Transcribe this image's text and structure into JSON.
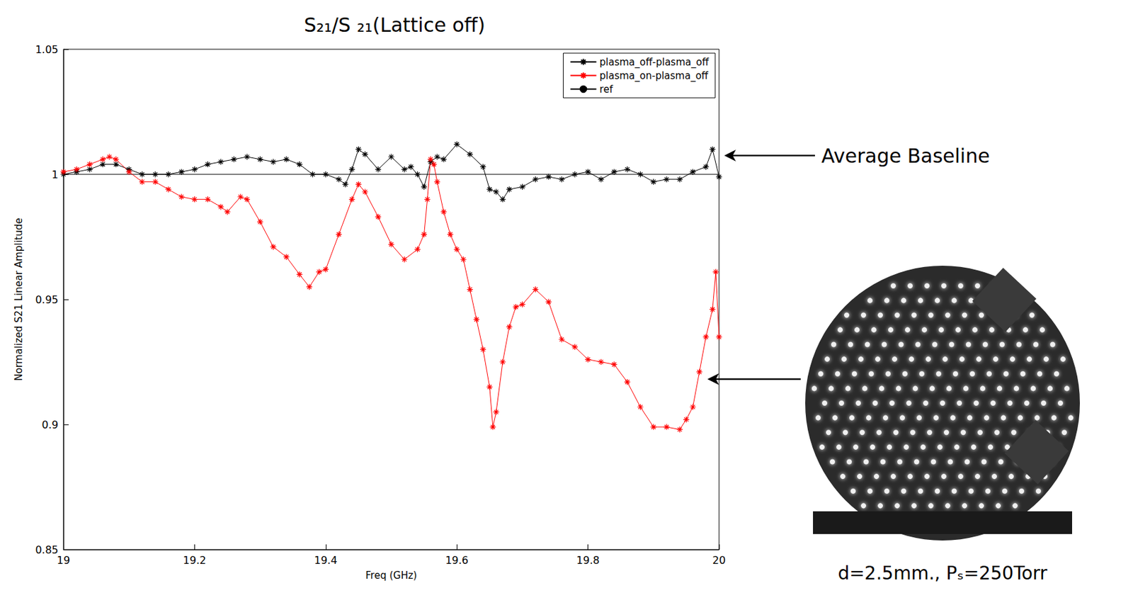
{
  "chart_data": {
    "type": "line",
    "title": "S₂₁/S ₂₁(Lattice off)",
    "x_label": "Freq (GHz)",
    "y_label": "Normalized S21 Linear Amplitude",
    "xlim": [
      19,
      20
    ],
    "xticks": [
      19,
      19.2,
      19.4,
      19.6,
      19.8,
      20
    ],
    "ylim": [
      0.85,
      1.05
    ],
    "yticks": [
      0.85,
      0.9,
      0.95,
      1,
      1.05
    ],
    "grid": false,
    "legend": "top-right",
    "series": [
      {
        "name": "plasma_off-plasma_off",
        "color": "#000000",
        "marker": "asterisk",
        "line_style": "solid",
        "x": [
          19.0,
          19.02,
          19.04,
          19.06,
          19.08,
          19.1,
          19.12,
          19.14,
          19.16,
          19.18,
          19.2,
          19.22,
          19.24,
          19.26,
          19.28,
          19.3,
          19.32,
          19.34,
          19.36,
          19.38,
          19.4,
          19.42,
          19.43,
          19.44,
          19.45,
          19.46,
          19.48,
          19.5,
          19.52,
          19.53,
          19.54,
          19.55,
          19.56,
          19.57,
          19.58,
          19.6,
          19.62,
          19.64,
          19.65,
          19.66,
          19.67,
          19.68,
          19.7,
          19.72,
          19.74,
          19.76,
          19.78,
          19.8,
          19.82,
          19.84,
          19.86,
          19.88,
          19.9,
          19.92,
          19.94,
          19.96,
          19.98,
          19.99,
          20.0
        ],
        "values": [
          1.0,
          1.001,
          1.002,
          1.004,
          1.004,
          1.002,
          1.0,
          1.0,
          1.0,
          1.001,
          1.002,
          1.004,
          1.005,
          1.006,
          1.007,
          1.006,
          1.005,
          1.006,
          1.004,
          1.0,
          1.0,
          0.998,
          0.996,
          1.002,
          1.01,
          1.008,
          1.002,
          1.007,
          1.002,
          1.003,
          1.0,
          0.995,
          1.005,
          1.007,
          1.006,
          1.012,
          1.008,
          1.003,
          0.994,
          0.993,
          0.99,
          0.994,
          0.995,
          0.998,
          0.999,
          0.998,
          1.0,
          1.001,
          0.998,
          1.001,
          1.002,
          1.0,
          0.997,
          0.998,
          0.998,
          1.001,
          1.003,
          1.01,
          0.999
        ]
      },
      {
        "name": "plasma_on-plasma_off",
        "color": "#ff0000",
        "marker": "asterisk",
        "line_style": "solid",
        "x": [
          19.0,
          19.02,
          19.04,
          19.06,
          19.07,
          19.08,
          19.1,
          19.12,
          19.14,
          19.16,
          19.18,
          19.2,
          19.22,
          19.24,
          19.25,
          19.27,
          19.28,
          19.3,
          19.32,
          19.34,
          19.36,
          19.375,
          19.39,
          19.4,
          19.42,
          19.44,
          19.45,
          19.46,
          19.48,
          19.5,
          19.52,
          19.54,
          19.55,
          19.555,
          19.56,
          19.565,
          19.57,
          19.58,
          19.59,
          19.6,
          19.61,
          19.62,
          19.63,
          19.64,
          19.65,
          19.655,
          19.66,
          19.67,
          19.68,
          19.69,
          19.7,
          19.72,
          19.74,
          19.76,
          19.78,
          19.8,
          19.82,
          19.84,
          19.86,
          19.88,
          19.9,
          19.92,
          19.94,
          19.95,
          19.96,
          19.97,
          19.98,
          19.99,
          19.995,
          20.0
        ],
        "values": [
          1.001,
          1.002,
          1.004,
          1.006,
          1.007,
          1.006,
          1.001,
          0.997,
          0.997,
          0.994,
          0.991,
          0.99,
          0.99,
          0.987,
          0.985,
          0.991,
          0.99,
          0.981,
          0.971,
          0.967,
          0.96,
          0.955,
          0.961,
          0.962,
          0.976,
          0.99,
          0.996,
          0.993,
          0.983,
          0.972,
          0.966,
          0.97,
          0.976,
          0.99,
          1.006,
          1.004,
          0.997,
          0.985,
          0.976,
          0.97,
          0.966,
          0.954,
          0.942,
          0.93,
          0.915,
          0.899,
          0.905,
          0.925,
          0.939,
          0.947,
          0.948,
          0.954,
          0.949,
          0.934,
          0.931,
          0.926,
          0.925,
          0.924,
          0.917,
          0.907,
          0.899,
          0.899,
          0.898,
          0.902,
          0.907,
          0.921,
          0.935,
          0.946,
          0.961,
          0.935
        ]
      },
      {
        "name": "ref",
        "color": "#000000",
        "marker": "none",
        "line_style": "solid",
        "x": [
          19,
          20
        ],
        "values": [
          1,
          1
        ]
      }
    ],
    "annotations": [
      {
        "text": "Average Baseline"
      },
      {
        "text": "d=2.5mm., Pₛ=250Torr"
      }
    ]
  }
}
